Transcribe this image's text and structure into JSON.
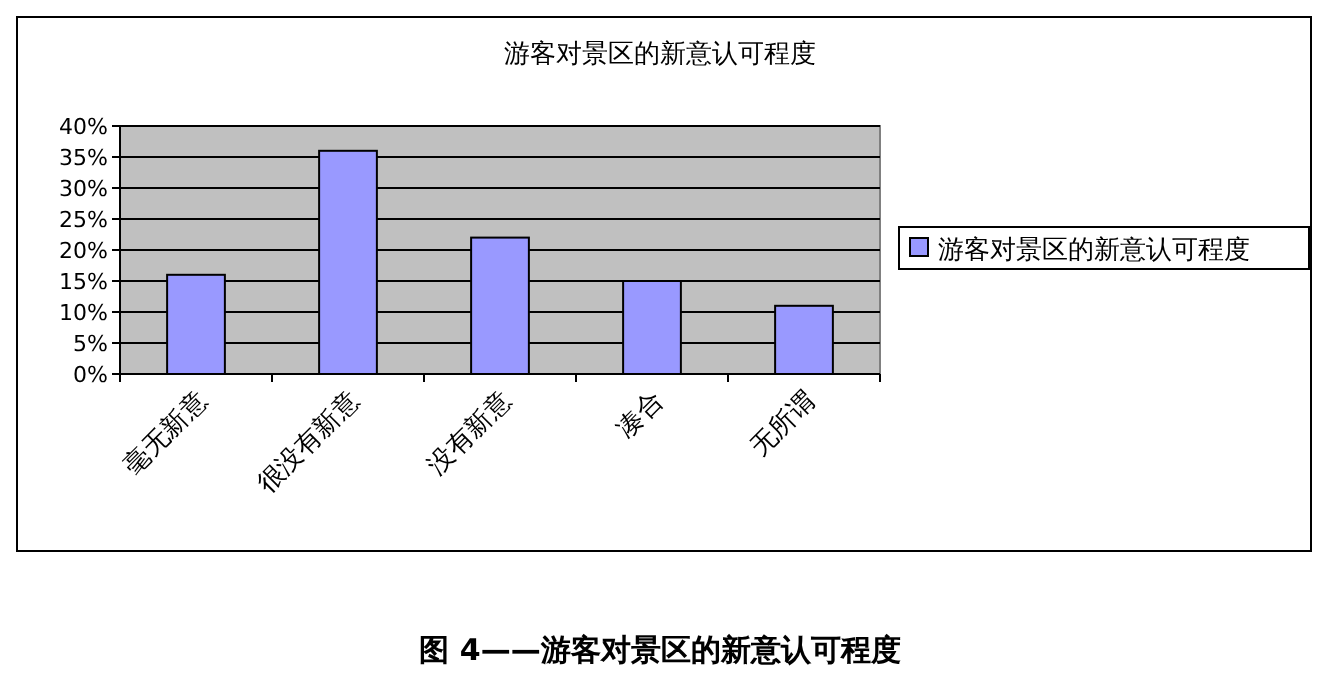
{
  "chart_data": {
    "type": "bar",
    "title": "游客对景区的新意认可程度",
    "categories": [
      "毫无新意",
      "很没有新意",
      "没有新意",
      "凑合",
      "无所谓"
    ],
    "series": [
      {
        "name": "游客对景区的新意认可程度",
        "color": "#9999ff",
        "values": [
          16,
          36,
          22,
          15,
          11
        ]
      }
    ],
    "ylim": [
      0,
      40
    ],
    "yticks": [
      {
        "value": 0,
        "label": "0%"
      },
      {
        "value": 5,
        "label": "5%"
      },
      {
        "value": 10,
        "label": "10%"
      },
      {
        "value": 15,
        "label": "15%"
      },
      {
        "value": 20,
        "label": "20%"
      },
      {
        "value": 25,
        "label": "25%"
      },
      {
        "value": 30,
        "label": "30%"
      },
      {
        "value": 35,
        "label": "35%"
      },
      {
        "value": 40,
        "label": "40%"
      }
    ],
    "grid": "y",
    "legend": "right",
    "annotations": [
      "图 4——游客对景区的新意认可程度"
    ]
  }
}
